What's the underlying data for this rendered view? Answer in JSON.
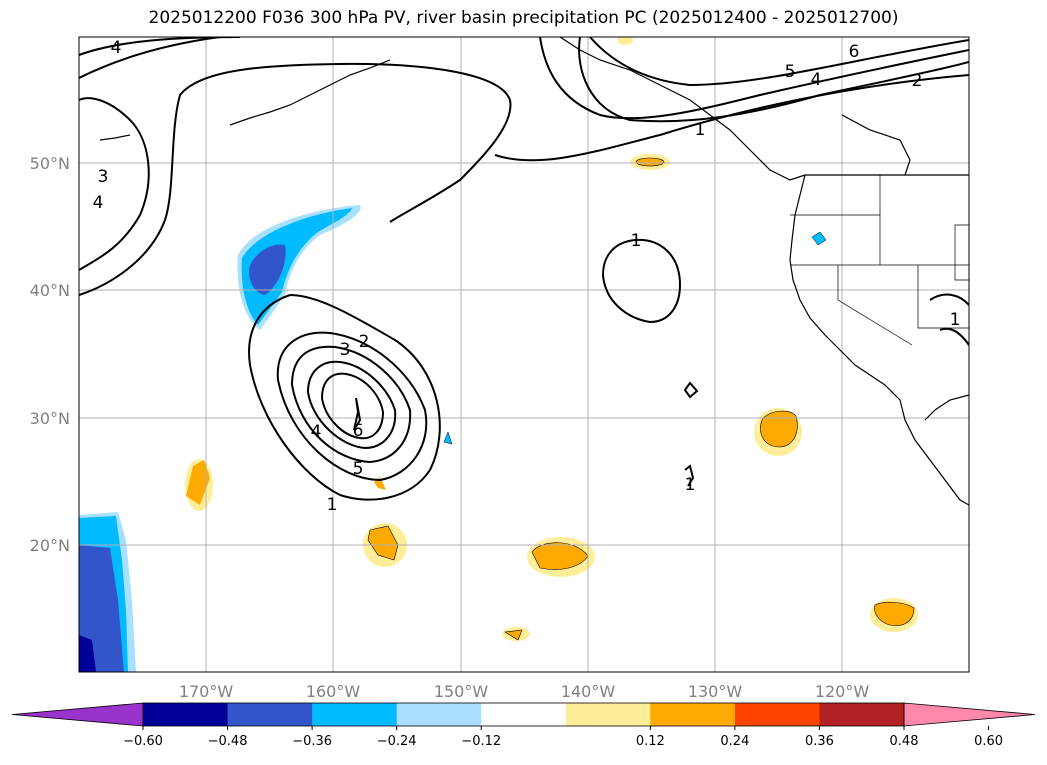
{
  "title": "2025012200 F036 300 hPa PV, river basin precipitation PC (2025012400 - 2025012700)",
  "map": {
    "lon_range": [
      -180,
      -110
    ],
    "lat_range": [
      10,
      60
    ],
    "lon_ticks": [
      "170°W",
      "160°W",
      "150°W",
      "140°W",
      "130°W",
      "120°W"
    ],
    "lat_ticks": [
      "50°N",
      "40°N",
      "30°N",
      "20°N"
    ],
    "grid": true,
    "pv_contour_labels": [
      "1",
      "2",
      "3",
      "4",
      "5",
      "6"
    ]
  },
  "colorbar": {
    "colors": [
      "#9933cc",
      "#000099",
      "#3355cc",
      "#00bbff",
      "#aae0ff",
      "#ffffff",
      "#ffee99",
      "#ffaa00",
      "#ff4400",
      "#b22222",
      "#ff88aa"
    ],
    "ticks": [
      "−0.60",
      "−0.48",
      "−0.36",
      "−0.24",
      "−0.12",
      "0.12",
      "0.24",
      "0.36",
      "0.48",
      "0.60"
    ],
    "extend": "both"
  }
}
